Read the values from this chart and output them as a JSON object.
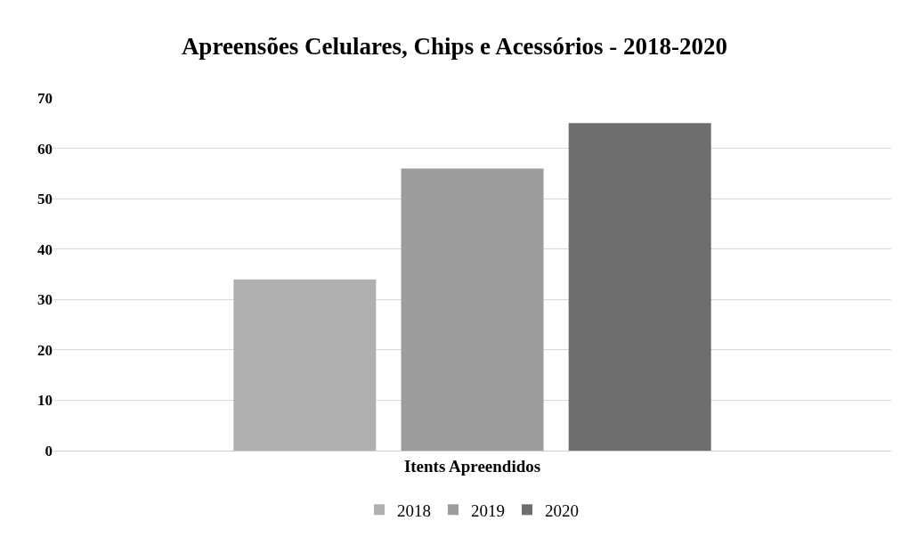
{
  "chart_data": {
    "type": "bar",
    "title": "Apreensões Celulares, Chips e Acessórios - 2018-2020",
    "categories": [
      "Itents Apreendidos"
    ],
    "series": [
      {
        "name": "2018",
        "color": "#b0b0b0",
        "values": [
          34
        ]
      },
      {
        "name": "2019",
        "color": "#9c9c9c",
        "values": [
          56
        ]
      },
      {
        "name": "2020",
        "color": "#6e6e6e",
        "values": [
          65
        ]
      }
    ],
    "ylim": [
      0,
      70
    ],
    "yticks": [
      0,
      10,
      20,
      30,
      40,
      50,
      60,
      70
    ],
    "grid": "y",
    "legend": "bottom"
  }
}
